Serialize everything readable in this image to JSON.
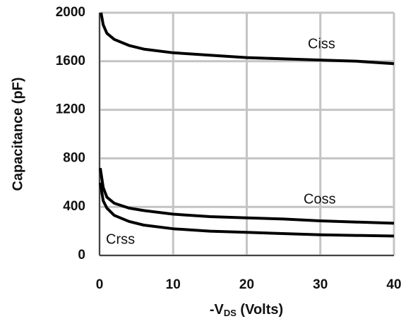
{
  "chart_data": {
    "type": "line",
    "ylabel": "Capacitance (pF)",
    "xlabel": [
      "-V",
      "DS",
      " (Volts)"
    ],
    "xlim": [
      0,
      40
    ],
    "xticks": [
      0,
      10,
      20,
      30,
      40
    ],
    "ylim": [
      0,
      2000
    ],
    "yticks": [
      0,
      400,
      800,
      1200,
      1600,
      2000
    ],
    "grid": true,
    "series": [
      {
        "name": "Ciss",
        "color": "#000000",
        "x": [
          0.2,
          0.5,
          1,
          2,
          4,
          6,
          10,
          15,
          20,
          25,
          30,
          35,
          40
        ],
        "values": [
          2000,
          1900,
          1830,
          1780,
          1730,
          1700,
          1670,
          1650,
          1630,
          1620,
          1610,
          1600,
          1580
        ]
      },
      {
        "name": "Coss",
        "color": "#000000",
        "x": [
          0.1,
          0.5,
          1,
          2,
          4,
          6,
          10,
          15,
          20,
          25,
          30,
          35,
          40
        ],
        "values": [
          720,
          560,
          480,
          430,
          390,
          370,
          340,
          320,
          310,
          300,
          285,
          275,
          265
        ]
      },
      {
        "name": "Crss",
        "color": "#000000",
        "x": [
          0.1,
          0.5,
          1,
          2,
          4,
          6,
          10,
          15,
          20,
          30,
          40
        ],
        "values": [
          600,
          450,
          390,
          330,
          280,
          250,
          220,
          200,
          190,
          170,
          160
        ]
      }
    ]
  }
}
